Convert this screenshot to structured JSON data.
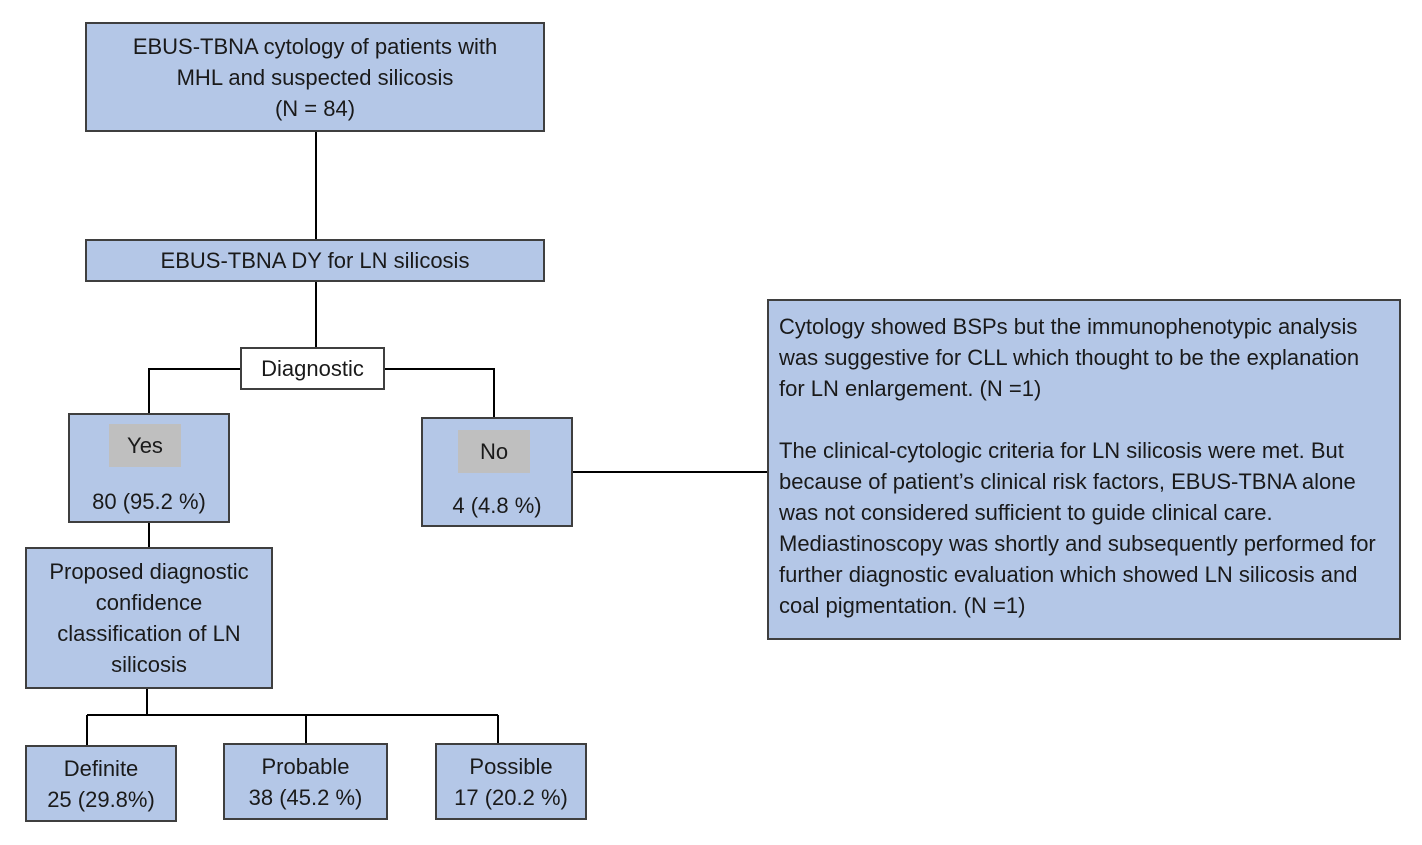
{
  "nodes": {
    "root": {
      "line1": "EBUS-TBNA cytology of patients with",
      "line2": "MHL and suspected silicosis",
      "line3": "(N = 84)"
    },
    "dy": {
      "label": "EBUS-TBNA DY for LN silicosis"
    },
    "diagnostic": {
      "label": "Diagnostic"
    },
    "yes": {
      "tag": "Yes",
      "value": "80 (95.2 %)"
    },
    "no": {
      "tag": "No",
      "value": "4 (4.8  %)"
    },
    "proposed": {
      "line1": "Proposed diagnostic",
      "line2": "confidence",
      "line3": "classification of LN",
      "line4": "silicosis"
    },
    "definite": {
      "label": "Definite",
      "value": "25 (29.8%)"
    },
    "probable": {
      "label": "Probable",
      "value": "38 (45.2  %)"
    },
    "possible": {
      "label": "Possible",
      "value": "17 (20.2 %)"
    }
  },
  "note": {
    "para1": "Cytology showed BSPs but the immunophenotypic analysis was suggestive for CLL which thought to be the explanation for LN enlargement. (N =1)",
    "para2": "The clinical-cytologic criteria for LN silicosis were met. But because of patient’s clinical risk factors, EBUS-TBNA alone was not considered sufficient to guide clinical care.  Mediastinoscopy was shortly and subsequently performed for further diagnostic evaluation which showed LN silicosis and coal pigmentation. (N =1)"
  },
  "colors": {
    "box_fill": "#b4c7e7",
    "tag_fill": "#bfbfbf",
    "border": "#3f3f3f",
    "connector": "#000000"
  }
}
